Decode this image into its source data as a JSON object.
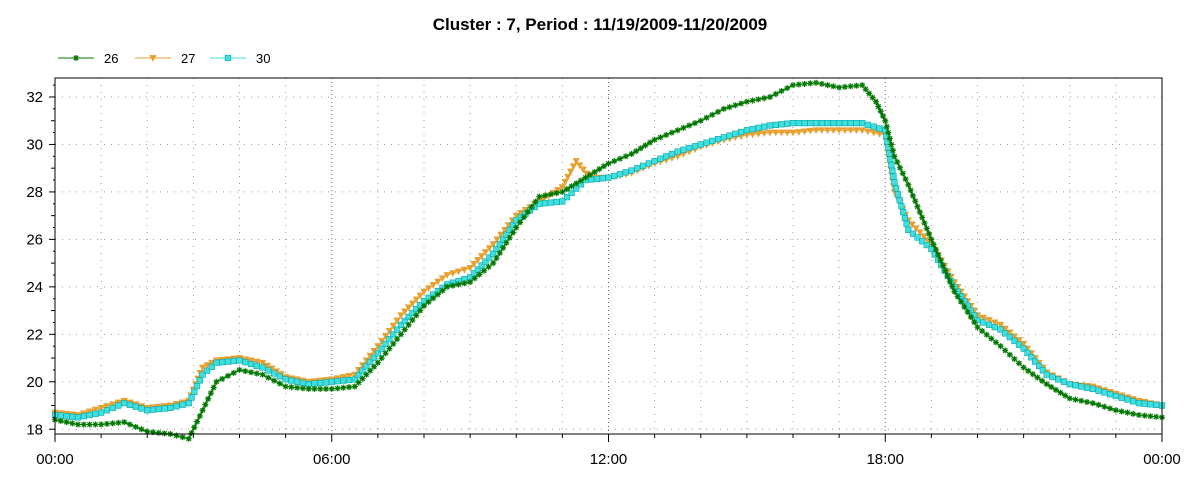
{
  "chart_data": {
    "type": "line",
    "title": "Cluster : 7, Period : 11/19/2009-11/20/2009",
    "xlabel": "",
    "ylabel": "",
    "x_ticks": [
      "00:00",
      "06:00",
      "12:00",
      "18:00",
      "00:00"
    ],
    "x_tick_hours": [
      0,
      6,
      12,
      18,
      24
    ],
    "xlim_hours": [
      0,
      24
    ],
    "y_ticks": [
      18,
      20,
      22,
      24,
      26,
      28,
      30,
      32
    ],
    "ylim": [
      17.8,
      32.8
    ],
    "grid": true,
    "legend_position": "top-left",
    "series": [
      {
        "name": "26",
        "color": "#007700",
        "marker": "star",
        "x_hours": [
          0,
          0.5,
          1.0,
          1.5,
          2.0,
          2.5,
          2.9,
          3.2,
          3.5,
          4.0,
          4.5,
          5.0,
          5.5,
          6.0,
          6.5,
          7.0,
          7.5,
          8.0,
          8.5,
          9.0,
          9.5,
          10.0,
          10.5,
          11.0,
          11.5,
          12.0,
          12.5,
          13.0,
          13.5,
          14.0,
          14.5,
          15.0,
          15.5,
          16.0,
          16.5,
          17.0,
          17.5,
          17.8,
          18.0,
          18.2,
          18.5,
          19.0,
          19.5,
          20.0,
          20.5,
          21.0,
          21.5,
          22.0,
          22.5,
          23.0,
          23.5,
          24.0
        ],
        "values": [
          18.4,
          18.2,
          18.2,
          18.3,
          17.9,
          17.8,
          17.6,
          18.8,
          20.0,
          20.5,
          20.3,
          19.8,
          19.7,
          19.7,
          19.8,
          20.8,
          22.0,
          23.2,
          24.0,
          24.2,
          25.0,
          26.5,
          27.8,
          28.0,
          28.6,
          29.2,
          29.6,
          30.2,
          30.6,
          31.0,
          31.5,
          31.8,
          32.0,
          32.5,
          32.6,
          32.4,
          32.5,
          31.8,
          31.0,
          29.5,
          28.3,
          26.0,
          23.8,
          22.3,
          21.5,
          20.6,
          19.9,
          19.3,
          19.1,
          18.8,
          18.6,
          18.5
        ]
      },
      {
        "name": "27",
        "color": "#e8a030",
        "marker": "triangle-down",
        "x_hours": [
          0,
          0.5,
          1.0,
          1.5,
          2.0,
          2.5,
          2.9,
          3.2,
          3.5,
          4.0,
          4.5,
          5.0,
          5.5,
          6.0,
          6.5,
          7.0,
          7.5,
          8.0,
          8.5,
          9.0,
          9.5,
          10.0,
          10.5,
          11.0,
          11.3,
          11.6,
          12.0,
          12.5,
          13.0,
          13.5,
          14.0,
          14.5,
          15.0,
          15.5,
          16.0,
          16.5,
          17.0,
          17.5,
          18.0,
          18.2,
          18.5,
          19.0,
          19.5,
          20.0,
          20.5,
          21.0,
          21.5,
          22.0,
          22.5,
          23.0,
          23.5,
          24.0
        ],
        "values": [
          18.7,
          18.6,
          18.9,
          19.2,
          18.9,
          19.0,
          19.2,
          20.6,
          20.9,
          21.0,
          20.8,
          20.2,
          20.0,
          20.1,
          20.3,
          21.5,
          22.8,
          23.8,
          24.5,
          24.8,
          25.8,
          27.0,
          27.6,
          28.2,
          29.3,
          28.6,
          28.6,
          28.8,
          29.2,
          29.5,
          29.9,
          30.2,
          30.4,
          30.5,
          30.5,
          30.6,
          30.6,
          30.6,
          30.4,
          28.0,
          26.8,
          25.8,
          24.2,
          22.8,
          22.4,
          21.6,
          20.4,
          19.9,
          19.8,
          19.5,
          19.2,
          19.0
        ]
      },
      {
        "name": "30",
        "color": "#44dddd",
        "marker": "square",
        "x_hours": [
          0,
          0.5,
          1.0,
          1.5,
          2.0,
          2.5,
          2.9,
          3.2,
          3.5,
          4.0,
          4.5,
          5.0,
          5.5,
          6.0,
          6.5,
          7.0,
          7.5,
          8.0,
          8.5,
          9.0,
          9.5,
          10.0,
          10.5,
          11.0,
          11.5,
          12.0,
          12.5,
          13.0,
          13.5,
          14.0,
          14.5,
          15.0,
          15.5,
          16.0,
          16.5,
          17.0,
          17.5,
          18.0,
          18.2,
          18.5,
          19.0,
          19.5,
          20.0,
          20.5,
          21.0,
          21.5,
          22.0,
          22.5,
          23.0,
          23.5,
          24.0
        ],
        "values": [
          18.6,
          18.5,
          18.7,
          19.1,
          18.8,
          18.9,
          19.1,
          20.3,
          20.8,
          20.9,
          20.6,
          20.1,
          19.9,
          20.0,
          20.1,
          21.2,
          22.4,
          23.4,
          24.1,
          24.4,
          25.4,
          26.8,
          27.5,
          27.6,
          28.5,
          28.6,
          28.9,
          29.3,
          29.7,
          30.0,
          30.3,
          30.6,
          30.8,
          30.9,
          30.9,
          30.9,
          30.9,
          30.6,
          28.4,
          26.4,
          25.6,
          24.0,
          22.6,
          22.2,
          21.4,
          20.3,
          19.9,
          19.7,
          19.4,
          19.1,
          19.0
        ]
      }
    ]
  }
}
